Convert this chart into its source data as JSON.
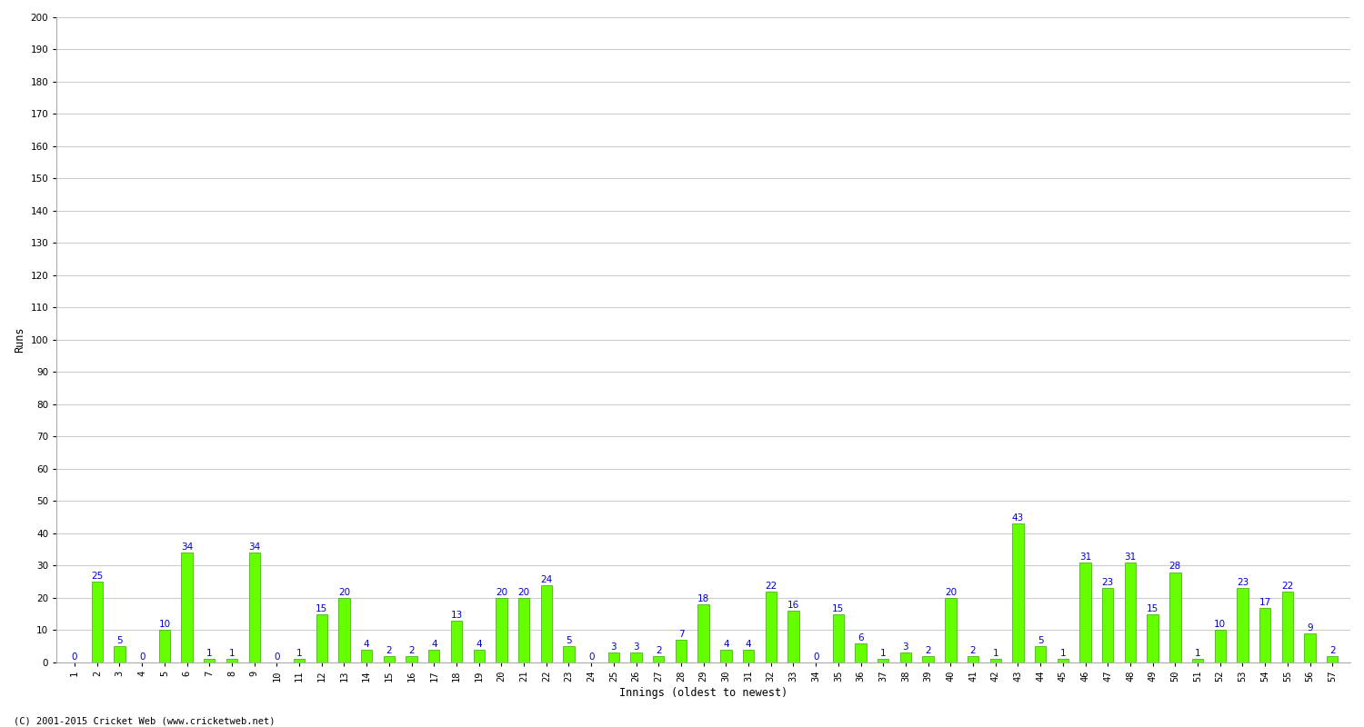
{
  "xlabel": "Innings (oldest to newest)",
  "ylabel": "Runs",
  "bar_color": "#66ff00",
  "bar_edge_color": "#33aa00",
  "label_color": "#0000cc",
  "background_color": "#ffffff",
  "grid_color": "#cccccc",
  "ylim": [
    0,
    200
  ],
  "yticks": [
    0,
    10,
    20,
    30,
    40,
    50,
    60,
    70,
    80,
    90,
    100,
    110,
    120,
    130,
    140,
    150,
    160,
    170,
    180,
    190,
    200
  ],
  "innings": [
    1,
    2,
    3,
    4,
    5,
    6,
    7,
    8,
    9,
    10,
    11,
    12,
    13,
    14,
    15,
    16,
    17,
    18,
    19,
    20,
    21,
    22,
    23,
    24,
    25,
    26,
    27,
    28,
    29,
    30,
    31,
    32,
    33,
    34,
    35,
    36,
    37,
    38,
    39,
    40,
    41,
    42,
    43,
    44,
    45,
    46,
    47,
    48,
    49,
    50,
    51,
    52,
    53,
    54,
    55,
    56,
    57
  ],
  "values": [
    0,
    25,
    5,
    0,
    10,
    34,
    1,
    1,
    34,
    0,
    1,
    15,
    20,
    4,
    2,
    2,
    4,
    13,
    4,
    20,
    20,
    24,
    5,
    0,
    3,
    3,
    2,
    7,
    18,
    4,
    4,
    22,
    16,
    0,
    15,
    6,
    1,
    3,
    2,
    20,
    2,
    1,
    43,
    5,
    1,
    31,
    23,
    31,
    15,
    28,
    1,
    10,
    23,
    17,
    22,
    9,
    2
  ],
  "label_fontsize": 7.5,
  "tick_fontsize": 7.5,
  "axis_label_fontsize": 8.5,
  "footer_text": "(C) 2001-2015 Cricket Web (www.cricketweb.net)"
}
